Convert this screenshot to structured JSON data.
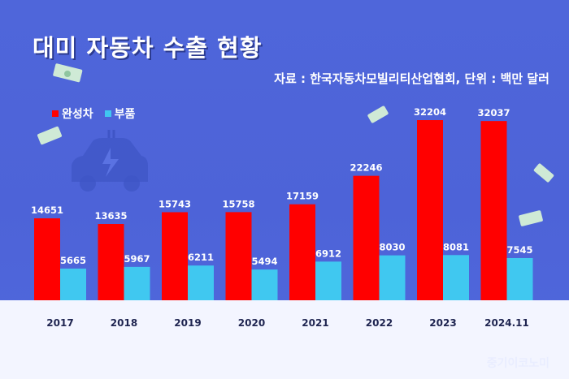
{
  "header": {
    "title": "대미 자동차 수출 현황",
    "source": "자료 : 한국자동차모빌리티산업협회, 단위 : 백만 달러"
  },
  "watermark": "중기이코노미",
  "colors": {
    "background": "#4f66da",
    "vehicles": "#ff0000",
    "parts": "#40c8f0",
    "ground": "#f3f5ff"
  },
  "chart_data": {
    "type": "bar",
    "title": "대미 자동차 수출 현황",
    "categories": [
      "2017",
      "2018",
      "2019",
      "2020",
      "2021",
      "2022",
      "2023",
      "2024.11"
    ],
    "series": [
      {
        "name": "완성차",
        "values": [
          14651,
          13635,
          15743,
          15758,
          17159,
          22246,
          32204,
          32037
        ]
      },
      {
        "name": "부품",
        "values": [
          5665,
          5967,
          6211,
          5494,
          6912,
          8030,
          8081,
          7545
        ]
      }
    ],
    "ylim": [
      0,
      32204
    ],
    "legend": "top-left",
    "grid": false
  }
}
